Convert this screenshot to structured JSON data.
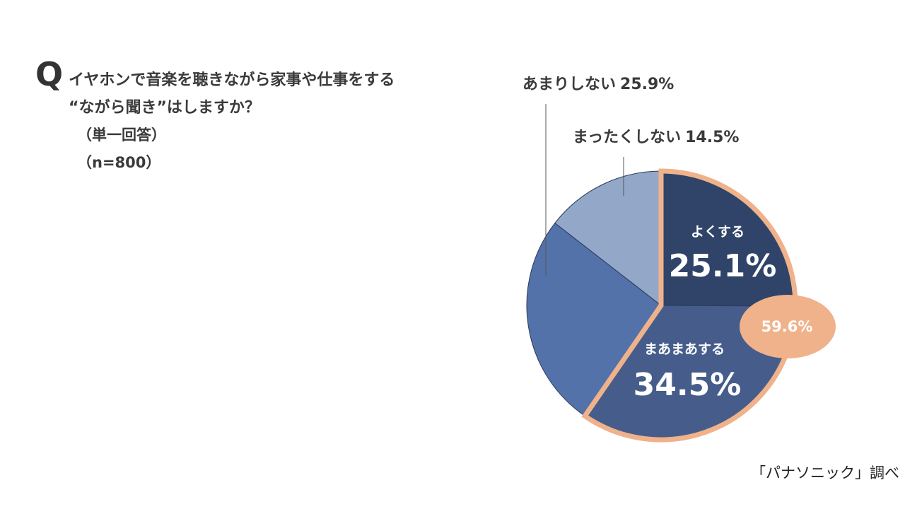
{
  "question": {
    "mark": "Q",
    "lines": [
      "イヤホンで音楽を聴きながら家事や仕事をする",
      "“ながら聞き”はしますか？",
      "（単一回答）",
      "（n=800）"
    ]
  },
  "source": "「パナソニック」調べ",
  "chart_data": {
    "type": "pie",
    "slices": [
      {
        "label": "よくする",
        "value": 25.1,
        "value_text": "25.1%",
        "color": "#2f4468"
      },
      {
        "label": "まあまあする",
        "value": 34.5,
        "value_text": "34.5%",
        "color": "#465d8c"
      },
      {
        "label": "あまりしない",
        "value": 25.9,
        "value_text": "25.9%",
        "color": "#5472aa"
      },
      {
        "label": "まったくしない",
        "value": 14.5,
        "value_text": "14.5%",
        "color": "#93a8c9"
      }
    ],
    "outside_labels": [
      {
        "label": "あまりしない",
        "value_text": "25.9%"
      },
      {
        "label": "まったくしない",
        "value_text": "14.5%"
      }
    ],
    "highlight": {
      "value_text": "59.6%",
      "color": "#f0b28a"
    }
  }
}
